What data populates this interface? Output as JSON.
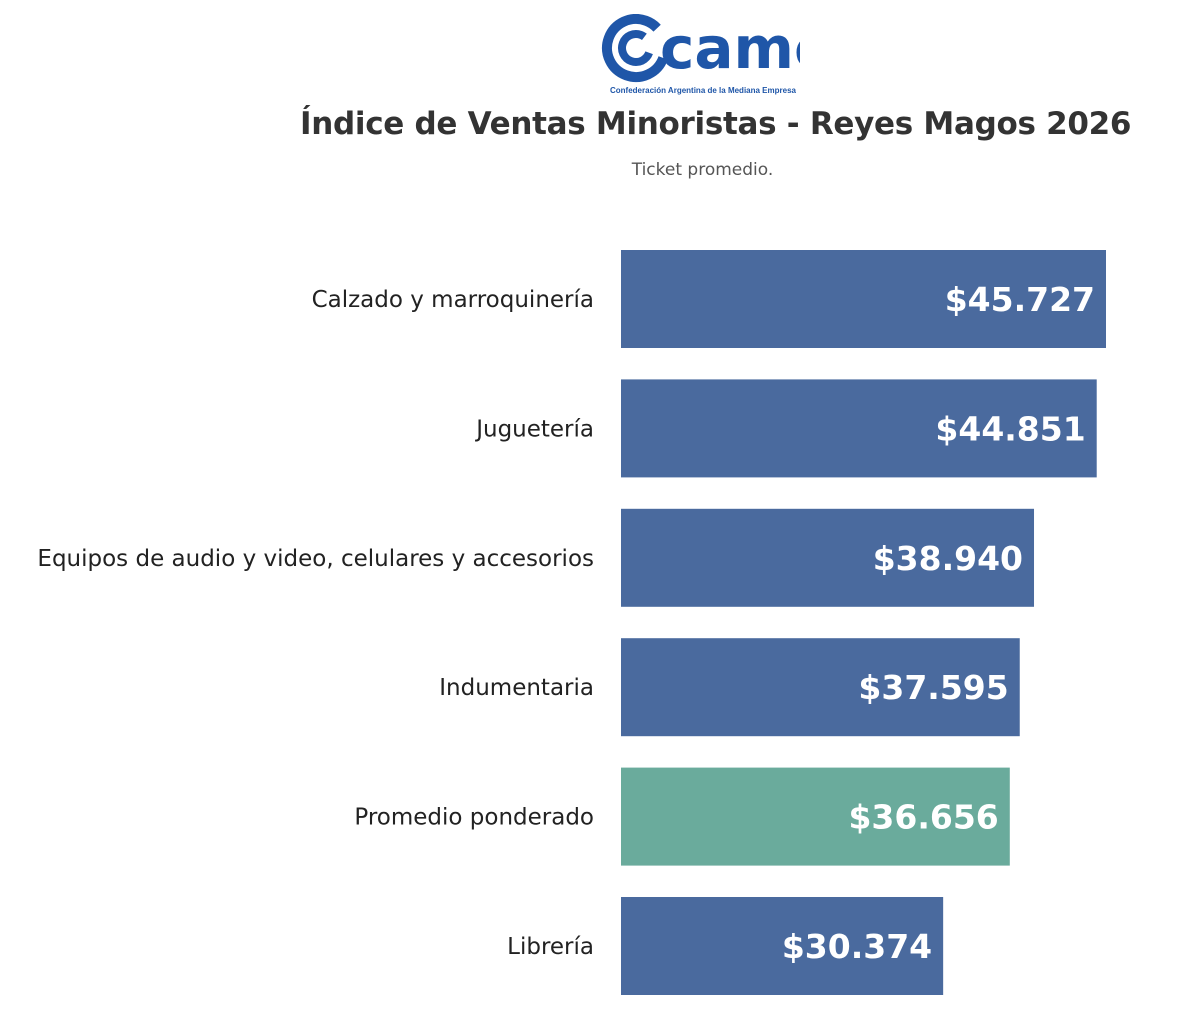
{
  "logo": {
    "name": "came",
    "tagline": "Confederación Argentina de la Mediana Empresa",
    "color": "#1f56a8"
  },
  "chart_data": {
    "type": "bar",
    "orientation": "horizontal",
    "title": "Índice de Ventas Minoristas - Reyes Magos 2026",
    "subtitle": "Ticket promedio.",
    "categories": [
      "Calzado y marroquinería",
      "Juguetería",
      "Equipos de audio y video, celulares y accesorios",
      "Indumentaria",
      "Promedio ponderado",
      "Librería"
    ],
    "values": [
      45727,
      44851,
      38940,
      37595,
      36656,
      30374
    ],
    "value_labels": [
      "$45.727",
      "$44.851",
      "$38.940",
      "$37.595",
      "$36.656",
      "$30.374"
    ],
    "colors": [
      "#4a6a9e",
      "#4a6a9e",
      "#4a6a9e",
      "#4a6a9e",
      "#6aab9c",
      "#4a6a9e"
    ],
    "xlim": [
      0,
      45727
    ],
    "grid": false,
    "legend": "none"
  }
}
